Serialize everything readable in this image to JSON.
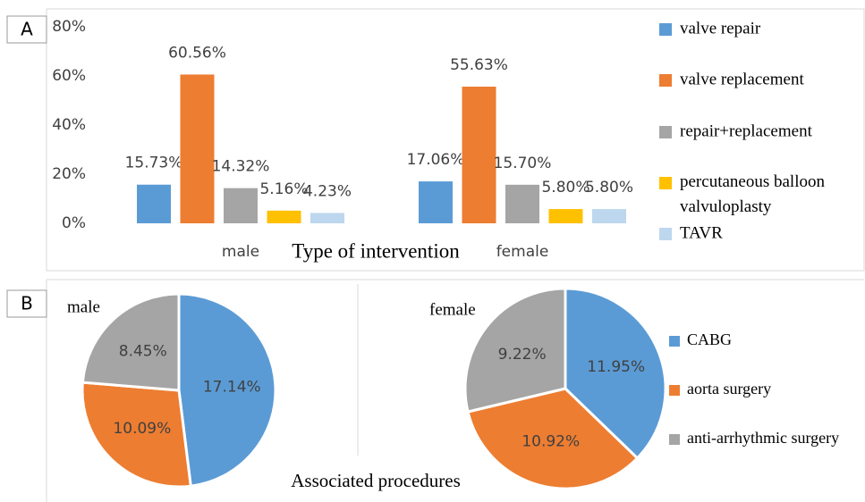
{
  "chart_data": [
    {
      "type": "bar",
      "panel": "A",
      "xlabel": "Type of intervention",
      "categories": [
        "male",
        "female"
      ],
      "series": [
        {
          "name": "valve repair",
          "color": "#5b9bd5",
          "values": [
            15.73,
            17.06
          ],
          "value_labels": [
            "15.73%",
            "17.06%"
          ]
        },
        {
          "name": "valve replacement",
          "color": "#ed7d31",
          "values": [
            60.56,
            55.63
          ],
          "value_labels": [
            "60.56%",
            "55.63%"
          ]
        },
        {
          "name": "repair+replacement",
          "color": "#a5a5a5",
          "values": [
            14.32,
            15.7
          ],
          "value_labels": [
            "14.32%",
            "15.70%"
          ]
        },
        {
          "name": "percutaneous balloon valvuloplasty",
          "color": "#ffc000",
          "values": [
            5.16,
            5.8
          ],
          "value_labels": [
            "5.16%",
            "5.80%"
          ]
        },
        {
          "name": "TAVR",
          "color": "#bdd7ee",
          "values": [
            4.23,
            5.8
          ],
          "value_labels": [
            "4.23%",
            "5.80%"
          ]
        }
      ],
      "ylim": [
        0,
        80
      ],
      "yticks": [
        {
          "value": 0,
          "label": "0%"
        },
        {
          "value": 20,
          "label": "20%"
        },
        {
          "value": 40,
          "label": "40%"
        },
        {
          "value": 60,
          "label": "60%"
        },
        {
          "value": 80,
          "label": "80%"
        }
      ]
    },
    {
      "type": "pie",
      "panel": "B",
      "title": "male",
      "categories": [
        "CABG",
        "aorta surgery",
        "anti-arrhythmic surgery"
      ],
      "colors": [
        "#5b9bd5",
        "#ed7d31",
        "#a5a5a5"
      ],
      "values": [
        17.14,
        10.09,
        8.45
      ],
      "value_labels": [
        "17.14%",
        "10.09%",
        "8.45%"
      ]
    },
    {
      "type": "pie",
      "title": "female",
      "categories": [
        "CABG",
        "aorta surgery",
        "anti-arrhythmic surgery"
      ],
      "colors": [
        "#5b9bd5",
        "#ed7d31",
        "#a5a5a5"
      ],
      "values": [
        11.95,
        10.92,
        9.22
      ],
      "value_labels": [
        "11.95%",
        "10.92%",
        "9.22%"
      ]
    }
  ],
  "caption": "Associated procedures"
}
